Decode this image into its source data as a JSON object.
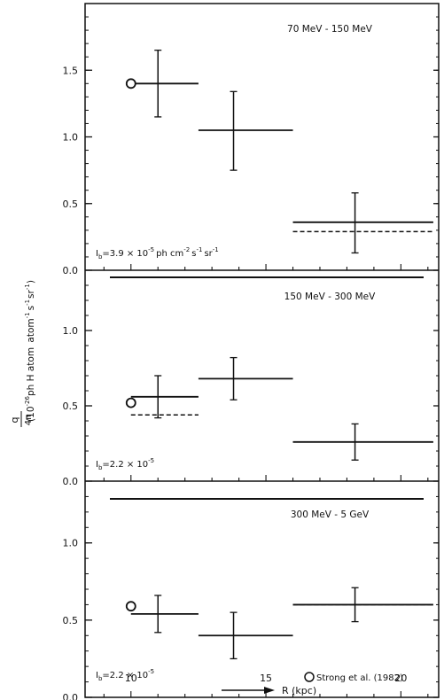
{
  "figure": {
    "y_axis_label": "qγ/4π (10⁻²⁶ph H atom⁻¹ s⁻¹sr⁻¹)",
    "y_axis_label_main": "(10",
    "y_axis_label_sup": "-26",
    "y_axis_label_rest": "ph H atom",
    "y_axis_label_frac_num": "q",
    "y_axis_label_frac_den": "4π",
    "x_axis_label": "R (kpc)"
  },
  "chart_data": [
    {
      "type": "scatter",
      "title": "70 MeV - 150 MeV",
      "background_label": "I_b = 3.9 × 10⁻⁵ ph cm⁻² s⁻¹ sr⁻¹",
      "background_label_main": "I",
      "background_label_sub": "b",
      "background_label_value": "=3.9 × 10",
      "background_label_exp": "-5",
      "background_label_unit": "ph  cm",
      "xlim": [
        8.3,
        21.4
      ],
      "ylim": [
        0.0,
        2.0
      ],
      "yticks": [
        0.0,
        0.5,
        1.0,
        1.5
      ],
      "yticklabels": [
        "0.0",
        "0.5",
        "1.0",
        "1.5"
      ],
      "points": [
        {
          "x": 11.0,
          "y": 1.4,
          "xmin": 10.0,
          "xmax": 12.5,
          "ylo": 1.15,
          "yhi": 1.65
        },
        {
          "x": 13.8,
          "y": 1.05,
          "xmin": 12.5,
          "xmax": 16.0,
          "ylo": 0.75,
          "yhi": 1.34
        },
        {
          "x": 18.3,
          "y": 0.36,
          "xmin": 16.0,
          "xmax": 21.2,
          "ylo": 0.13,
          "yhi": 0.58
        }
      ],
      "dashed_levels": [
        {
          "xmin": 16.0,
          "xmax": 21.2,
          "y": 0.29
        }
      ],
      "reference_point": {
        "x": 10.0,
        "y": 1.4
      }
    },
    {
      "type": "scatter",
      "title": "150 MeV - 300 MeV",
      "background_label": "I_b = 2.2 × 10⁻⁵",
      "background_label_main": "I",
      "background_label_sub": "b",
      "background_label_value": "=2.2 × 10",
      "background_label_exp": "-5",
      "background_label_unit": "",
      "xlim": [
        8.3,
        21.4
      ],
      "ylim": [
        0.0,
        1.4
      ],
      "yticks": [
        0.0,
        0.5,
        1.0
      ],
      "yticklabels": [
        "0.0",
        "0.5",
        "1.0"
      ],
      "points": [
        {
          "x": 11.0,
          "y": 0.56,
          "xmin": 10.0,
          "xmax": 12.5,
          "ylo": 0.42,
          "yhi": 0.7
        },
        {
          "x": 13.8,
          "y": 0.68,
          "xmin": 12.5,
          "xmax": 16.0,
          "ylo": 0.54,
          "yhi": 0.82
        },
        {
          "x": 18.3,
          "y": 0.26,
          "xmin": 16.0,
          "xmax": 21.2,
          "ylo": 0.14,
          "yhi": 0.38
        }
      ],
      "dashed_levels": [
        {
          "xmin": 10.0,
          "xmax": 12.5,
          "y": 0.44
        },
        {
          "xmin": 16.0,
          "xmax": 21.2,
          "y": 0.26
        }
      ],
      "reference_point": {
        "x": 10.0,
        "y": 0.52
      }
    },
    {
      "type": "scatter",
      "title": "300 MeV - 5 GeV",
      "background_label": "I_b = 2.2 × 10⁻⁵",
      "background_label_main": "I",
      "background_label_sub": "b",
      "background_label_value": "=2.2 × 10",
      "background_label_exp": "-5",
      "background_label_unit": "",
      "legend": "Strong et al. (1982)",
      "xlim": [
        8.3,
        21.4
      ],
      "ylim": [
        0.0,
        1.4
      ],
      "yticks": [
        0.0,
        0.5,
        1.0
      ],
      "yticklabels": [
        "0.0",
        "0.5",
        "1.0"
      ],
      "xticks": [
        10,
        15,
        20
      ],
      "xticklabels": [
        "10",
        "15",
        "20"
      ],
      "points": [
        {
          "x": 11.0,
          "y": 0.54,
          "xmin": 10.0,
          "xmax": 12.5,
          "ylo": 0.42,
          "yhi": 0.66
        },
        {
          "x": 13.8,
          "y": 0.4,
          "xmin": 12.5,
          "xmax": 16.0,
          "ylo": 0.25,
          "yhi": 0.55
        },
        {
          "x": 18.3,
          "y": 0.6,
          "xmin": 16.0,
          "xmax": 21.2,
          "ylo": 0.49,
          "yhi": 0.71
        }
      ],
      "dashed_levels": [
        {
          "xmin": 16.0,
          "xmax": 21.2,
          "y": 0.6
        }
      ],
      "reference_point": {
        "x": 10.0,
        "y": 0.59
      }
    }
  ]
}
